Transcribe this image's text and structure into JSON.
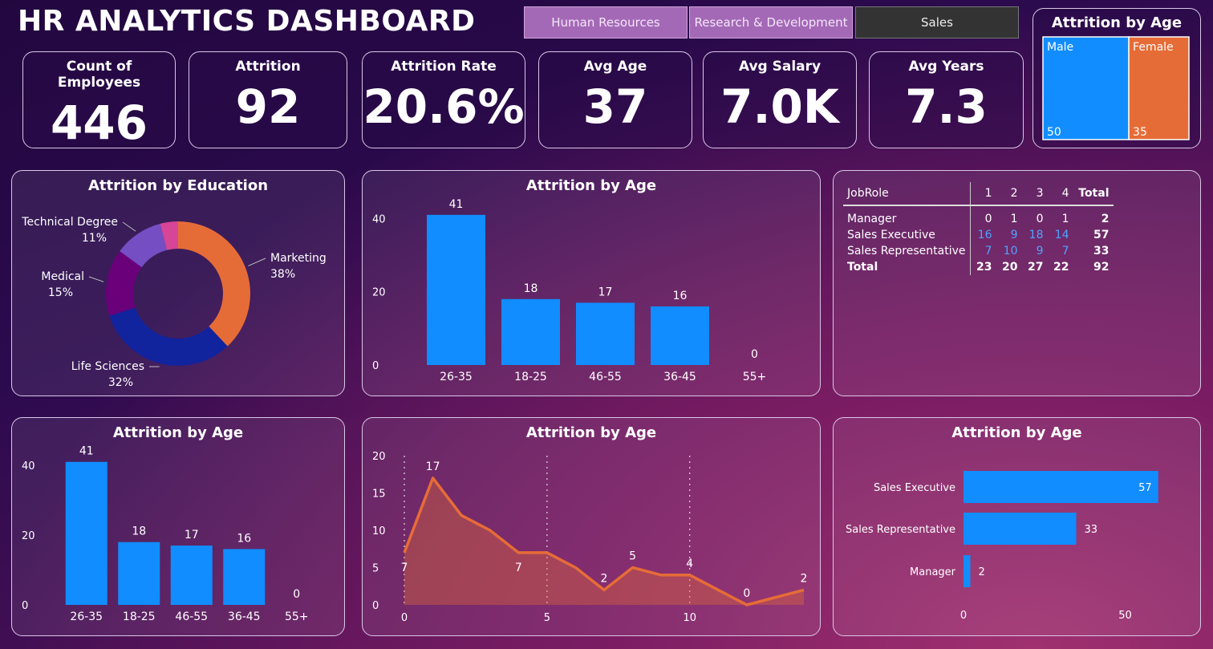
{
  "title": "HR ANALYTICS DASHBOARD",
  "tabs": [
    {
      "label": "Human Resources",
      "active": true
    },
    {
      "label": "Research & Development",
      "active": true
    },
    {
      "label": "Sales",
      "active": false
    }
  ],
  "kpis": [
    {
      "label": "Count of Employees",
      "value": "446"
    },
    {
      "label": "Attrition",
      "value": "92"
    },
    {
      "label": "Attrition Rate",
      "value": "20.6%"
    },
    {
      "label": "Avg Age",
      "value": "37"
    },
    {
      "label": "Avg Salary",
      "value": "7.0K"
    },
    {
      "label": "Avg Years",
      "value": "7.3"
    }
  ],
  "colors": {
    "blue": "#118dff",
    "orange": "#e66c37",
    "navy": "#12239e",
    "purple": "#6b007b",
    "lilac": "#744ec2",
    "pink": "#d64597"
  },
  "chart_data": [
    {
      "id": "gender-treemap",
      "type": "treemap",
      "title": "Attrition by Age",
      "categories": [
        "Male",
        "Female"
      ],
      "values": [
        50,
        35
      ]
    },
    {
      "id": "education-donut",
      "type": "pie",
      "title": "Attrition by Education",
      "slices": [
        {
          "label": "Marketing",
          "pct": "38%",
          "value": 38,
          "color": "#e66c37"
        },
        {
          "label": "Life Sciences",
          "pct": "32%",
          "value": 32,
          "color": "#12239e"
        },
        {
          "label": "Medical",
          "pct": "15%",
          "value": 15,
          "color": "#6b007b"
        },
        {
          "label": "Technical Degree",
          "pct": "11%",
          "value": 11,
          "color": "#744ec2"
        },
        {
          "label": "",
          "pct": "",
          "value": 4,
          "color": "#d64597"
        }
      ]
    },
    {
      "id": "age-bar-1",
      "type": "bar",
      "title": "Attrition by Age",
      "categories": [
        "26-35",
        "18-25",
        "46-55",
        "36-45",
        "55+"
      ],
      "values": [
        41,
        18,
        17,
        16,
        0
      ],
      "yticks": [
        0,
        20,
        40
      ],
      "ylim": [
        0,
        46
      ]
    },
    {
      "id": "jobrole-matrix",
      "type": "table",
      "columns": [
        "JobRole",
        "1",
        "2",
        "3",
        "4",
        "Total"
      ],
      "rows": [
        {
          "name": "Manager",
          "cells": [
            "0",
            "1",
            "0",
            "1",
            "2"
          ],
          "highlight": false
        },
        {
          "name": "Sales Executive",
          "cells": [
            "16",
            "9",
            "18",
            "14",
            "57"
          ],
          "highlight": true
        },
        {
          "name": "Sales Representative",
          "cells": [
            "7",
            "10",
            "9",
            "7",
            "33"
          ],
          "highlight": true
        }
      ],
      "total": {
        "name": "Total",
        "cells": [
          "23",
          "20",
          "27",
          "22",
          "92"
        ]
      }
    },
    {
      "id": "age-bar-2",
      "type": "bar",
      "title": "Attrition by Age",
      "categories": [
        "26-35",
        "18-25",
        "46-55",
        "36-45",
        "55+"
      ],
      "values": [
        41,
        18,
        17,
        16,
        0
      ],
      "yticks": [
        0,
        20,
        40
      ],
      "ylim": [
        0,
        46
      ]
    },
    {
      "id": "age-area",
      "type": "area",
      "title": "Attrition by Age",
      "x": [
        0,
        1,
        2,
        3,
        4,
        5,
        6,
        7,
        8,
        9,
        10,
        11,
        12,
        13,
        14
      ],
      "y": [
        7,
        17,
        12,
        10,
        7,
        7,
        5,
        2,
        5,
        4,
        4,
        2,
        0,
        1,
        2
      ],
      "labeled_points": [
        0,
        1,
        4,
        7,
        8,
        10,
        12,
        14
      ],
      "xticks": [
        0,
        5,
        10
      ],
      "yticks": [
        0,
        5,
        10,
        15,
        20
      ],
      "xlim": [
        0,
        14
      ],
      "ylim": [
        0,
        20
      ]
    },
    {
      "id": "jobrole-hbar",
      "type": "bar",
      "orientation": "horizontal",
      "title": "Attrition by Age",
      "categories": [
        "Sales Executive",
        "Sales Representative",
        "Manager"
      ],
      "values": [
        57,
        33,
        2
      ],
      "xticks": [
        0,
        50
      ],
      "xlim": [
        0,
        62
      ]
    }
  ]
}
